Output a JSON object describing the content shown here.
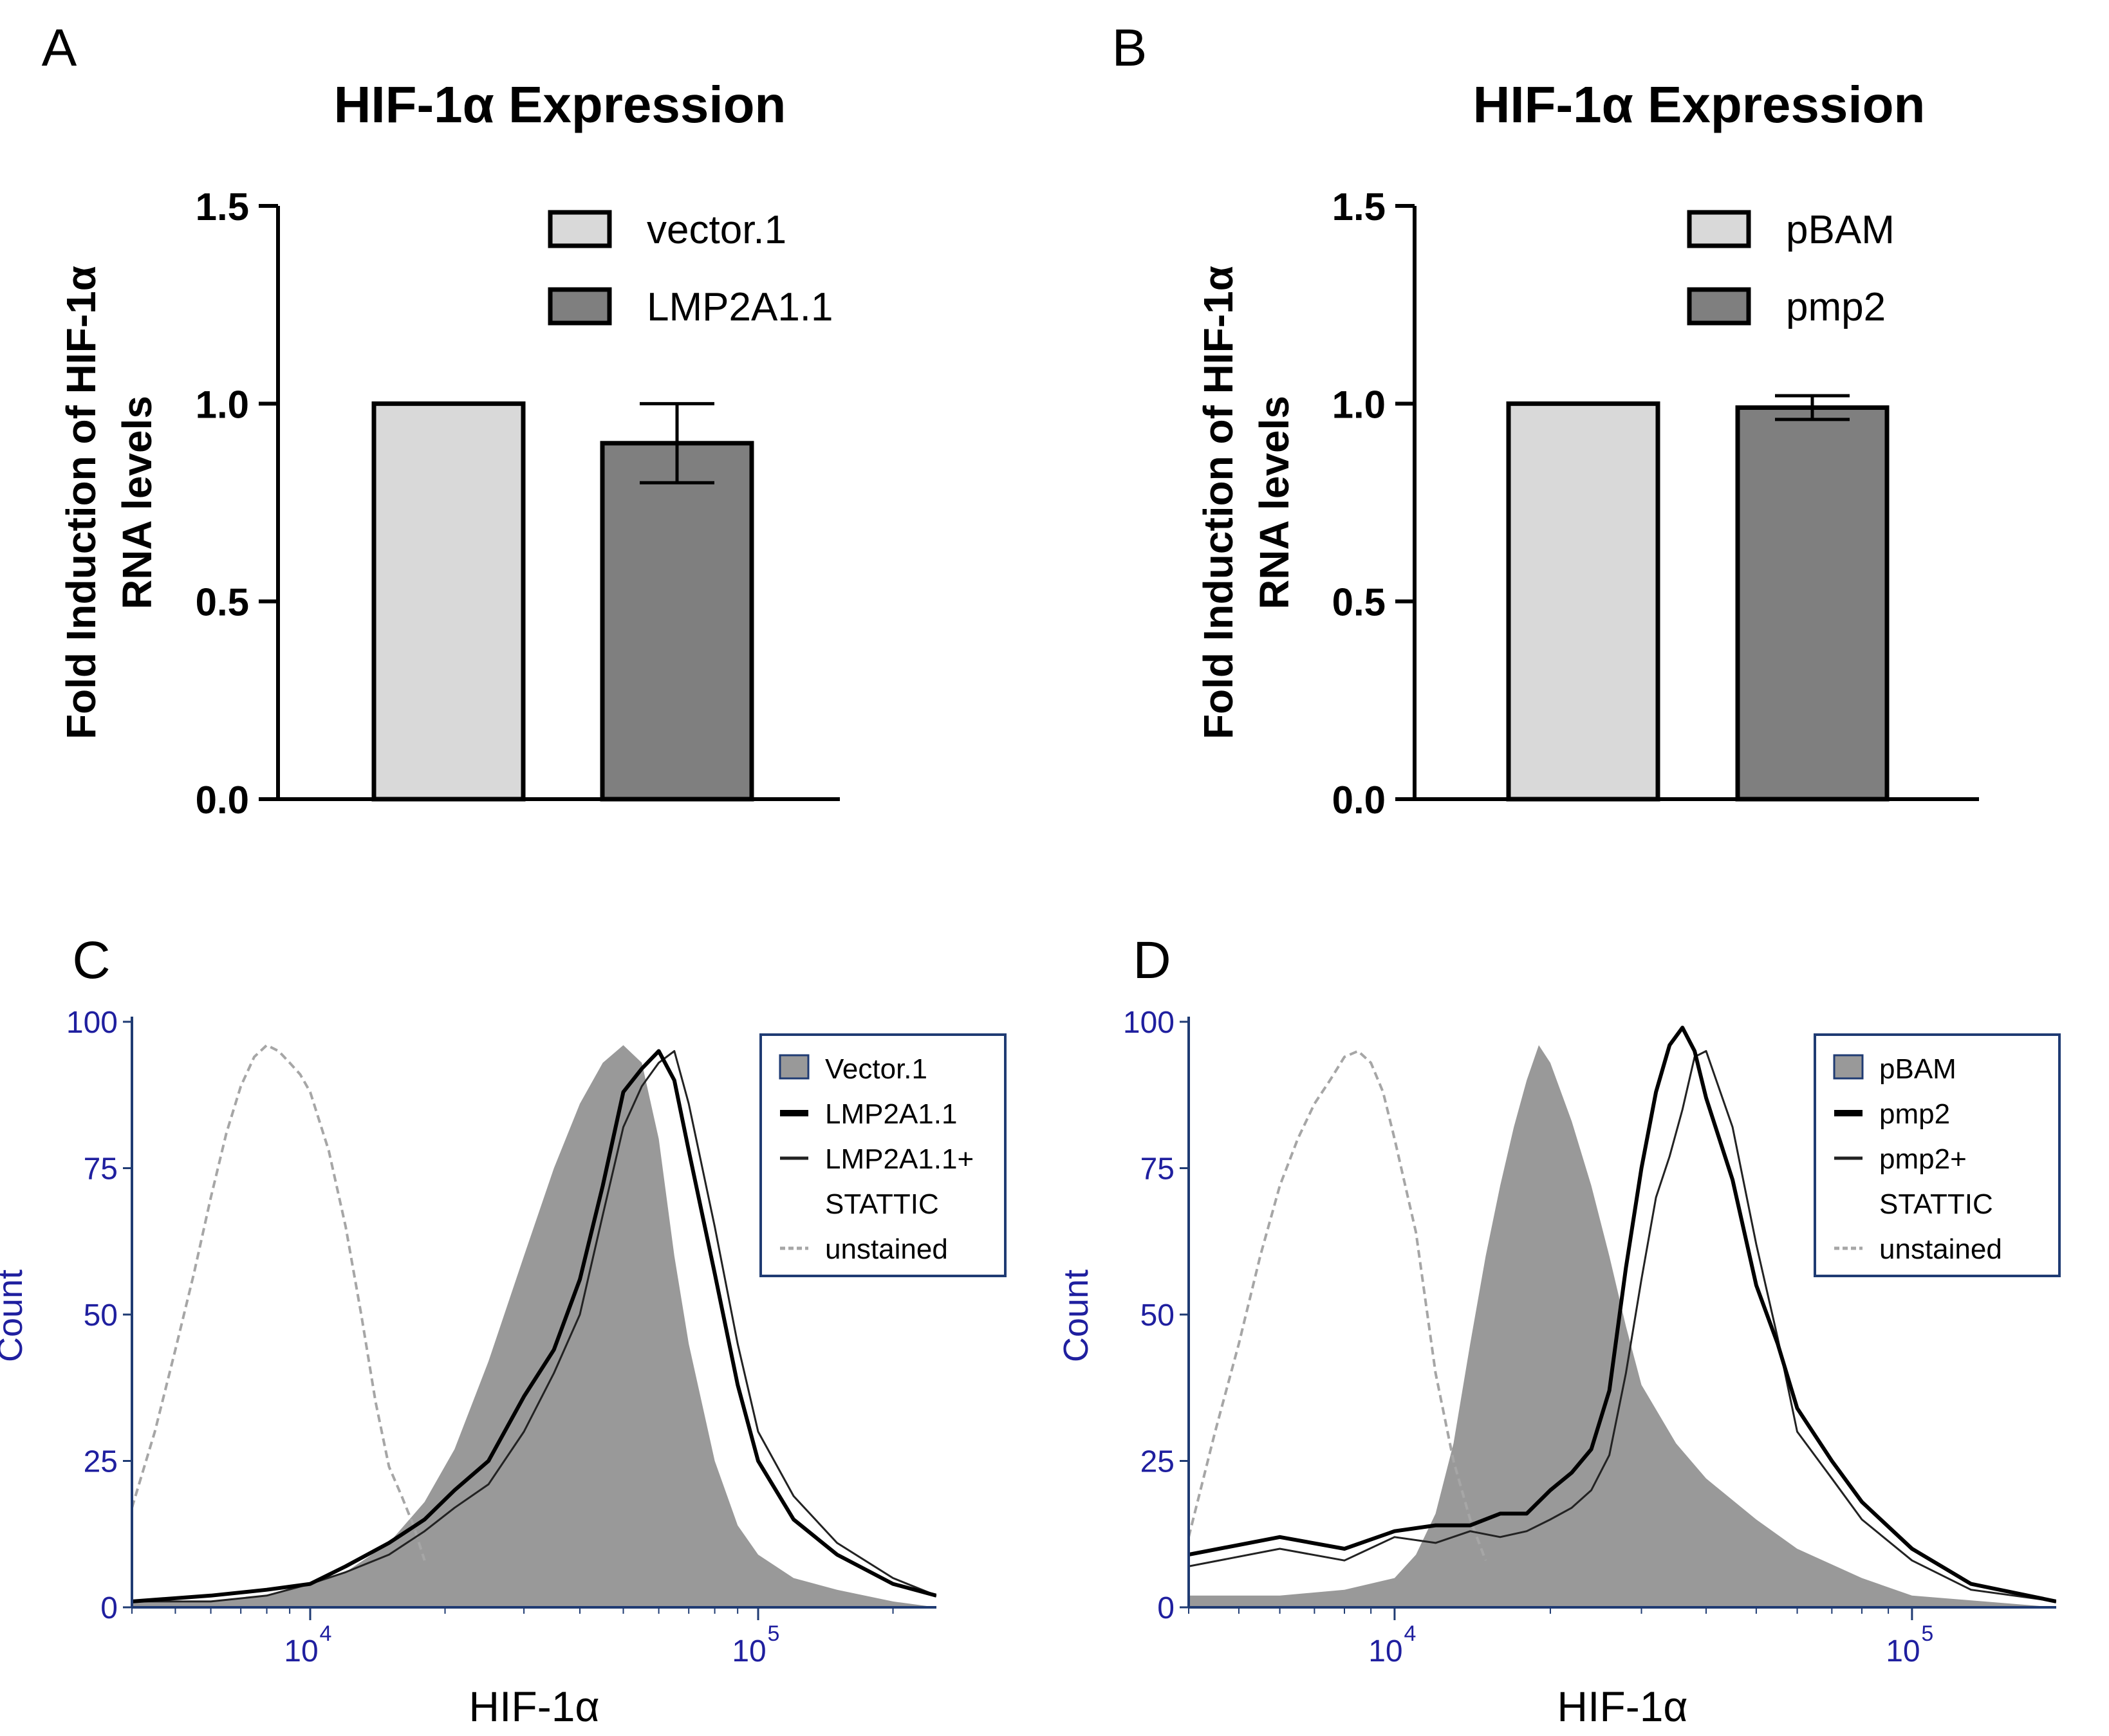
{
  "panels": [
    "A",
    "B",
    "C",
    "D"
  ],
  "chart_data": [
    {
      "panel": "A",
      "type": "bar",
      "title": "HIF-1α Expression",
      "ylabel_lines": [
        "Fold Induction of HIF-1α",
        "RNA levels"
      ],
      "xlabel": "",
      "ylim": [
        0,
        1.5
      ],
      "yticks": [
        "0.0",
        "0.5",
        "1.0",
        "1.5"
      ],
      "categories": [
        "vector.1",
        "LMP2A1.1"
      ],
      "values": [
        1.0,
        0.9
      ],
      "errors": [
        0,
        0.1
      ],
      "colors": [
        "#d9d9d9",
        "#7f7f7f"
      ],
      "legend": [
        {
          "label": "vector.1",
          "color": "#d9d9d9"
        },
        {
          "label": "LMP2A1.1",
          "color": "#7f7f7f"
        }
      ],
      "legend_position": "top-right"
    },
    {
      "panel": "B",
      "type": "bar",
      "title": "HIF-1α Expression",
      "ylabel_lines": [
        "Fold Induction of HIF-1α",
        "RNA levels"
      ],
      "xlabel": "",
      "ylim": [
        0,
        1.5
      ],
      "yticks": [
        "0.0",
        "0.5",
        "1.0",
        "1.5"
      ],
      "categories": [
        "pBAM",
        "pmp2"
      ],
      "values": [
        1.0,
        0.99
      ],
      "errors": [
        0,
        0.03
      ],
      "colors": [
        "#d9d9d9",
        "#7f7f7f"
      ],
      "legend": [
        {
          "label": "pBAM",
          "color": "#d9d9d9"
        },
        {
          "label": "pmp2",
          "color": "#7f7f7f"
        }
      ],
      "legend_position": "top-right"
    },
    {
      "panel": "C",
      "type": "area",
      "title": "",
      "xlabel": "HIF-1α",
      "ylabel": "Count",
      "x_scale": "log",
      "xlim": [
        4000,
        250000
      ],
      "ylim": [
        0,
        100
      ],
      "yticks": [
        "0",
        "25",
        "50",
        "75",
        "100"
      ],
      "xticks": [
        {
          "value": 10000,
          "label": "10",
          "exp": "4"
        },
        {
          "value": 100000,
          "label": "10",
          "exp": "5"
        }
      ],
      "legend_position": "top-right",
      "series": [
        {
          "name": "Vector.1",
          "style": "filled",
          "color": "#999999",
          "x": [
            4000,
            6000,
            8000,
            10000,
            12000,
            15000,
            18000,
            21000,
            25000,
            30000,
            35000,
            40000,
            45000,
            50000,
            55000,
            60000,
            65000,
            70000,
            80000,
            90000,
            100000,
            120000,
            150000,
            200000,
            250000
          ],
          "y": [
            1,
            1,
            2,
            4,
            6,
            11,
            18,
            27,
            42,
            60,
            75,
            86,
            93,
            96,
            93,
            80,
            60,
            45,
            25,
            14,
            9,
            5,
            3,
            1,
            0
          ]
        },
        {
          "name": "LMP2A1.1",
          "style": "thick",
          "color": "#000000",
          "x": [
            4000,
            6000,
            8000,
            10000,
            12000,
            15000,
            18000,
            21000,
            25000,
            30000,
            35000,
            40000,
            45000,
            50000,
            55000,
            60000,
            65000,
            70000,
            80000,
            90000,
            100000,
            120000,
            150000,
            200000,
            250000
          ],
          "y": [
            1,
            2,
            3,
            4,
            7,
            11,
            15,
            20,
            25,
            36,
            44,
            56,
            72,
            88,
            92,
            95,
            90,
            78,
            57,
            38,
            25,
            15,
            9,
            4,
            2
          ]
        },
        {
          "name": "LMP2A1.1+ STATTIC",
          "legend_lines": [
            "LMP2A1.1+",
            "STATTIC"
          ],
          "style": "thin",
          "color": "#222222",
          "x": [
            4000,
            6000,
            8000,
            10000,
            12000,
            15000,
            18000,
            21000,
            25000,
            30000,
            35000,
            40000,
            45000,
            50000,
            55000,
            60000,
            65000,
            70000,
            80000,
            90000,
            100000,
            120000,
            150000,
            200000,
            250000
          ],
          "y": [
            1,
            1,
            2,
            4,
            6,
            9,
            13,
            17,
            21,
            30,
            40,
            50,
            67,
            82,
            89,
            93,
            95,
            86,
            65,
            45,
            30,
            19,
            11,
            5,
            2
          ]
        },
        {
          "name": "unstained",
          "style": "dashed",
          "color": "#a6a6a6",
          "x": [
            4000,
            4500,
            5000,
            5500,
            6000,
            6500,
            7000,
            7500,
            8000,
            8500,
            9000,
            9500,
            10000,
            11000,
            12000,
            13000,
            14000,
            15000,
            16000,
            17000,
            18000
          ],
          "y": [
            17,
            30,
            44,
            57,
            70,
            81,
            89,
            94,
            96,
            95,
            93,
            91,
            88,
            78,
            65,
            50,
            35,
            24,
            19,
            14,
            8
          ]
        }
      ]
    },
    {
      "panel": "D",
      "type": "area",
      "title": "",
      "xlabel": "HIF-1α",
      "ylabel": "Count",
      "x_scale": "log",
      "xlim": [
        4000,
        190000
      ],
      "ylim": [
        0,
        100
      ],
      "yticks": [
        "0",
        "25",
        "50",
        "75",
        "100"
      ],
      "xticks": [
        {
          "value": 10000,
          "label": "10",
          "exp": "4"
        },
        {
          "value": 100000,
          "label": "10",
          "exp": "5"
        }
      ],
      "legend_position": "top-right",
      "series": [
        {
          "name": "pBAM",
          "style": "filled",
          "color": "#999999",
          "x": [
            4000,
            6000,
            8000,
            10000,
            11000,
            12000,
            13000,
            14000,
            15000,
            16000,
            17000,
            18000,
            19000,
            20000,
            22000,
            24000,
            26000,
            28000,
            30000,
            35000,
            40000,
            50000,
            60000,
            80000,
            100000,
            190000
          ],
          "y": [
            2,
            2,
            3,
            5,
            9,
            16,
            28,
            45,
            60,
            72,
            82,
            90,
            96,
            93,
            83,
            72,
            60,
            48,
            38,
            28,
            22,
            15,
            10,
            5,
            2,
            0
          ]
        },
        {
          "name": "pmp2",
          "style": "thick",
          "color": "#000000",
          "x": [
            4000,
            6000,
            8000,
            10000,
            12000,
            14000,
            16000,
            18000,
            20000,
            22000,
            24000,
            26000,
            28000,
            30000,
            32000,
            34000,
            36000,
            38000,
            40000,
            45000,
            50000,
            55000,
            60000,
            70000,
            80000,
            100000,
            130000,
            190000
          ],
          "y": [
            9,
            12,
            10,
            13,
            14,
            14,
            16,
            16,
            20,
            23,
            27,
            37,
            58,
            75,
            88,
            96,
            99,
            95,
            87,
            73,
            55,
            45,
            34,
            25,
            18,
            10,
            4,
            1
          ]
        },
        {
          "name": "pmp2+ STATTIC",
          "legend_lines": [
            "pmp2+",
            "STATTIC"
          ],
          "style": "thin",
          "color": "#222222",
          "x": [
            4000,
            6000,
            8000,
            10000,
            12000,
            14000,
            16000,
            18000,
            20000,
            22000,
            24000,
            26000,
            28000,
            30000,
            32000,
            34000,
            36000,
            38000,
            40000,
            45000,
            50000,
            55000,
            60000,
            70000,
            80000,
            100000,
            130000,
            190000
          ],
          "y": [
            7,
            10,
            8,
            12,
            11,
            13,
            12,
            13,
            15,
            17,
            20,
            26,
            40,
            56,
            70,
            77,
            85,
            94,
            95,
            82,
            62,
            46,
            30,
            22,
            15,
            8,
            3,
            1
          ]
        },
        {
          "name": "unstained",
          "style": "dashed",
          "color": "#a6a6a6",
          "x": [
            4000,
            4500,
            5000,
            5500,
            6000,
            6500,
            7000,
            7500,
            8000,
            8500,
            9000,
            9500,
            10000,
            11000,
            12000,
            13000,
            14000,
            15000
          ],
          "y": [
            12,
            30,
            45,
            60,
            72,
            80,
            86,
            90,
            94,
            95,
            93,
            88,
            80,
            64,
            40,
            25,
            15,
            8
          ]
        }
      ]
    }
  ]
}
